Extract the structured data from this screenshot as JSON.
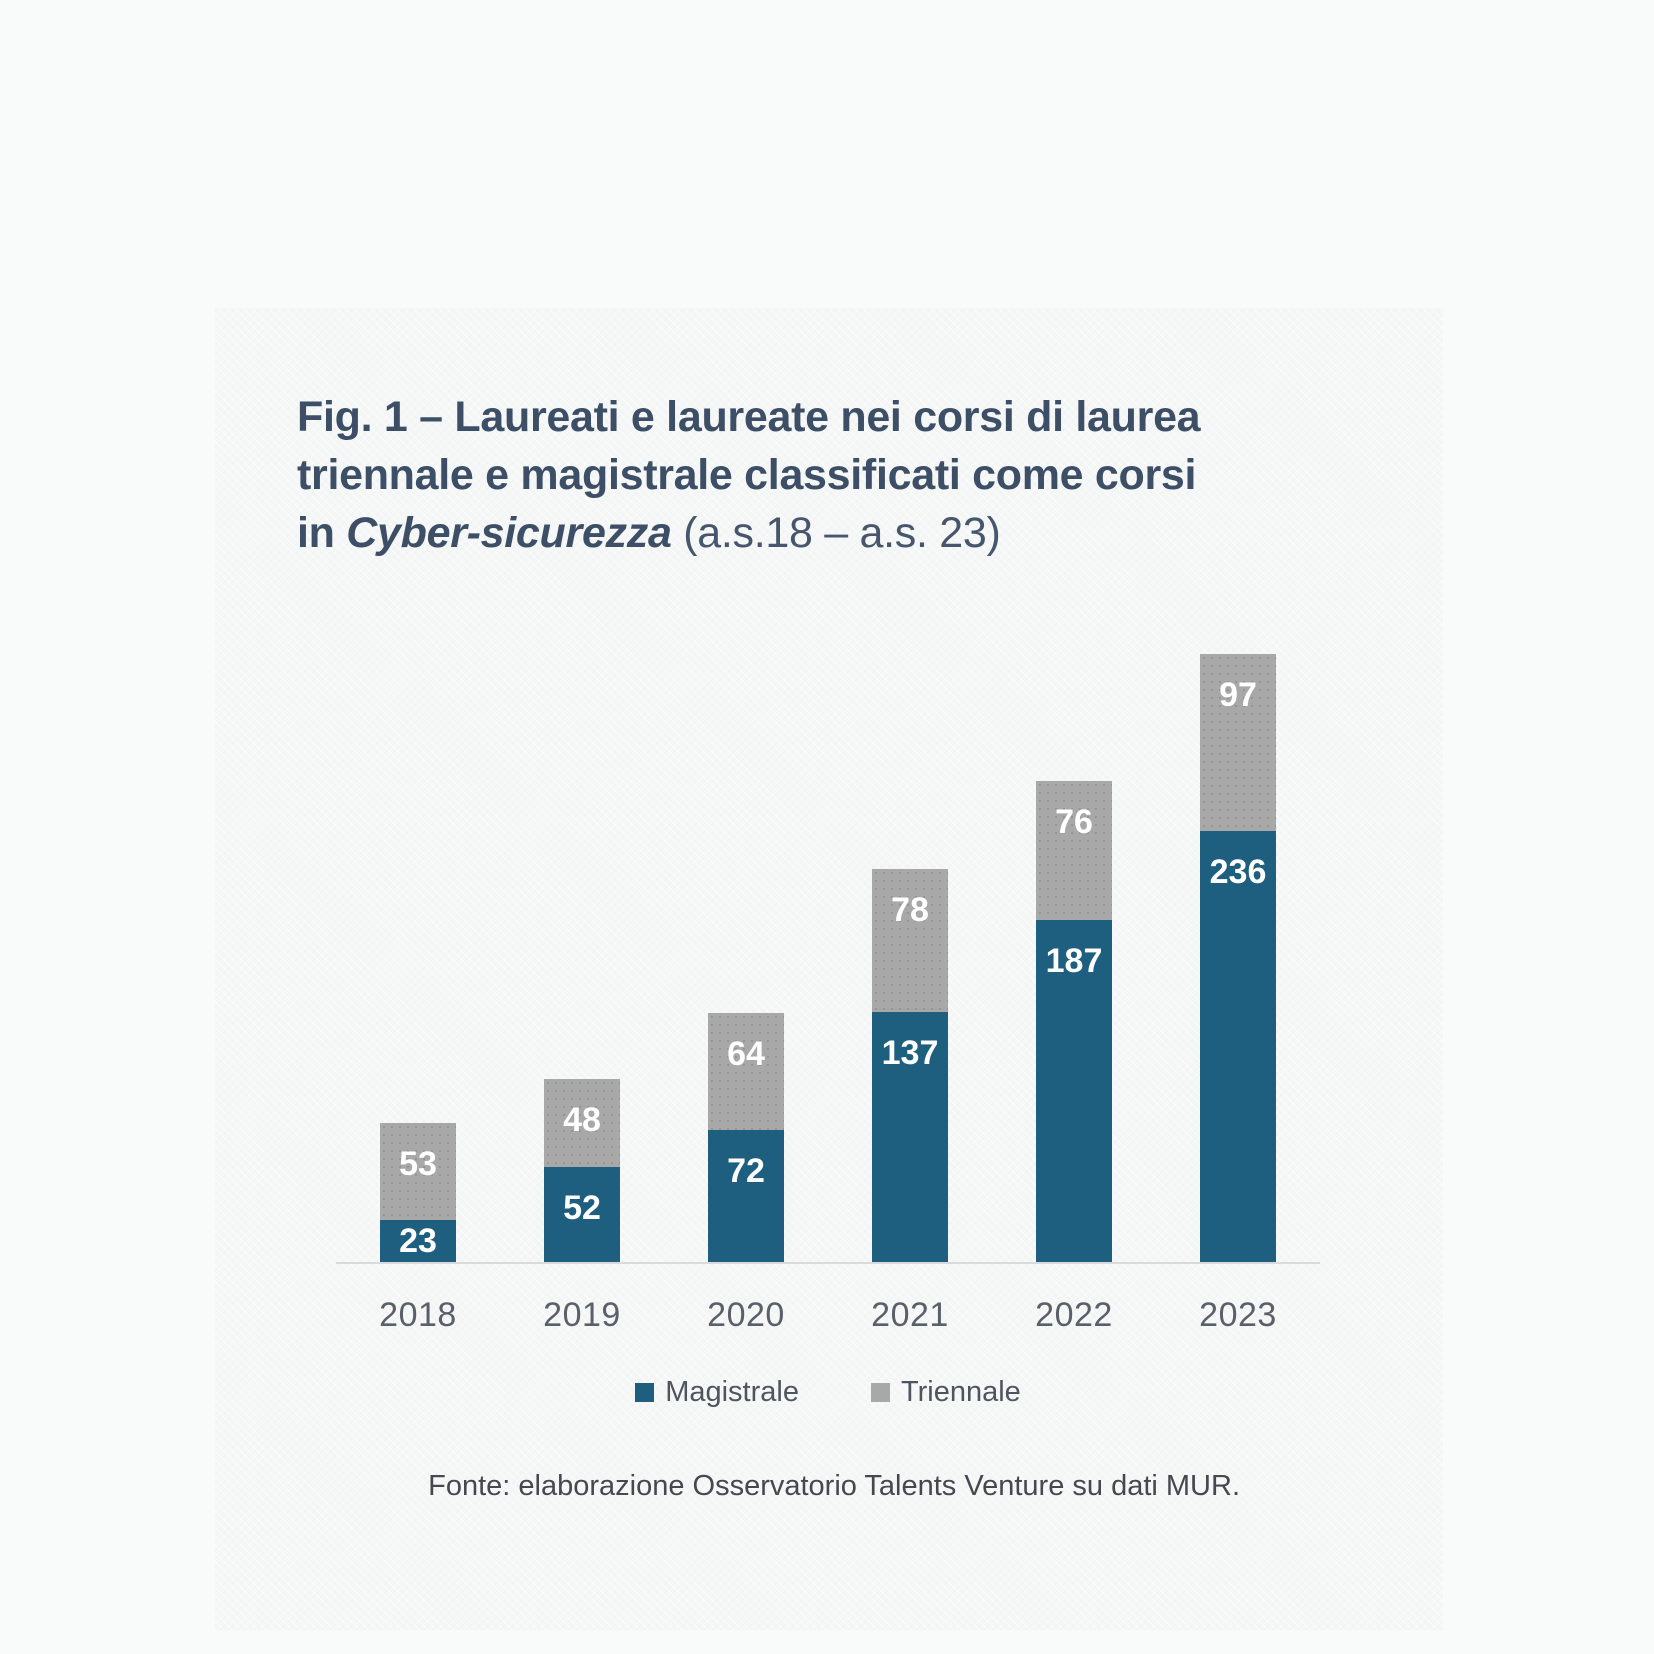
{
  "title": {
    "bold_part": "Fig. 1 – Laureati e laureate nei corsi di laurea triennale e magistrale classificati come corsi in ",
    "italic_part": "Cyber-sicurezza",
    "suffix_part": " (a.s.18 – a.s. 23)"
  },
  "chart_data": {
    "type": "bar",
    "stacked": true,
    "categories": [
      "2018",
      "2019",
      "2020",
      "2021",
      "2022",
      "2023"
    ],
    "series": [
      {
        "name": "Magistrale",
        "color": "#1e5f7f",
        "values": [
          23,
          52,
          72,
          137,
          187,
          236
        ]
      },
      {
        "name": "Triennale",
        "color": "#a8a8a8",
        "values": [
          53,
          48,
          64,
          78,
          76,
          97
        ]
      }
    ],
    "title": "Fig. 1 – Laureati e laureate nei corsi di laurea triennale e magistrale classificati come corsi in Cyber-sicurezza (a.s.18 – a.s. 23)",
    "xlabel": "",
    "ylabel": "",
    "ylim": [
      0,
      340
    ],
    "grid": false,
    "y_axis_visible": false,
    "legend_position": "bottom",
    "value_labels": "inside-top, white, bold"
  },
  "legend": {
    "items": [
      {
        "label": "Magistrale",
        "color": "#1e5f7f"
      },
      {
        "label": "Triennale",
        "color": "#a8a8a8"
      }
    ]
  },
  "source": "Fonte: elaborazione Osservatorio Talents Venture su dati MUR.",
  "colors": {
    "magistrale": "#1e5f7f",
    "triennale": "#a8a8a8",
    "title_text": "#3d4f66",
    "axis_line": "#d8dadb",
    "tick_text": "#5a606a",
    "legend_text": "#4e555f",
    "source_text": "#44484f",
    "background": "#f9fafa",
    "panel_background": "#f5f6f6"
  }
}
